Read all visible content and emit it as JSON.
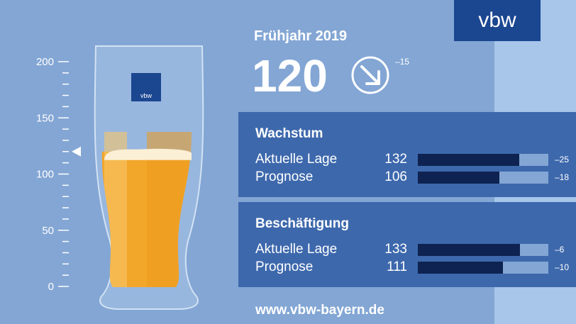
{
  "logo_text": "vbw",
  "glass_logo_text": "vbw",
  "period": "Frühjahr 2019",
  "website": "www.vbw-bayern.de",
  "colors": {
    "background": "#83a6d4",
    "panel": "#3d68ac",
    "bar_fill": "#0e2352",
    "beer": "#f2a62a",
    "logo": "#1b4690"
  },
  "chart_data": [
    {
      "type": "gauge",
      "axis_ticks": [
        "200",
        "150",
        "100",
        "50",
        "0"
      ],
      "ylim": [
        0,
        200
      ],
      "value": 120,
      "change": "–15",
      "trend": "down"
    },
    {
      "type": "bar",
      "title": "Wachstum",
      "rows": [
        {
          "label": "Aktuelle Lage",
          "value": 132,
          "change": "–25"
        },
        {
          "label": "Prognose",
          "value": 106,
          "change": "–18"
        }
      ],
      "xlim": [
        0,
        170
      ]
    },
    {
      "type": "bar",
      "title": "Beschäftigung",
      "rows": [
        {
          "label": "Aktuelle Lage",
          "value": 133,
          "change": "–6"
        },
        {
          "label": "Prognose",
          "value": 111,
          "change": "–10"
        }
      ],
      "xlim": [
        0,
        170
      ]
    }
  ]
}
